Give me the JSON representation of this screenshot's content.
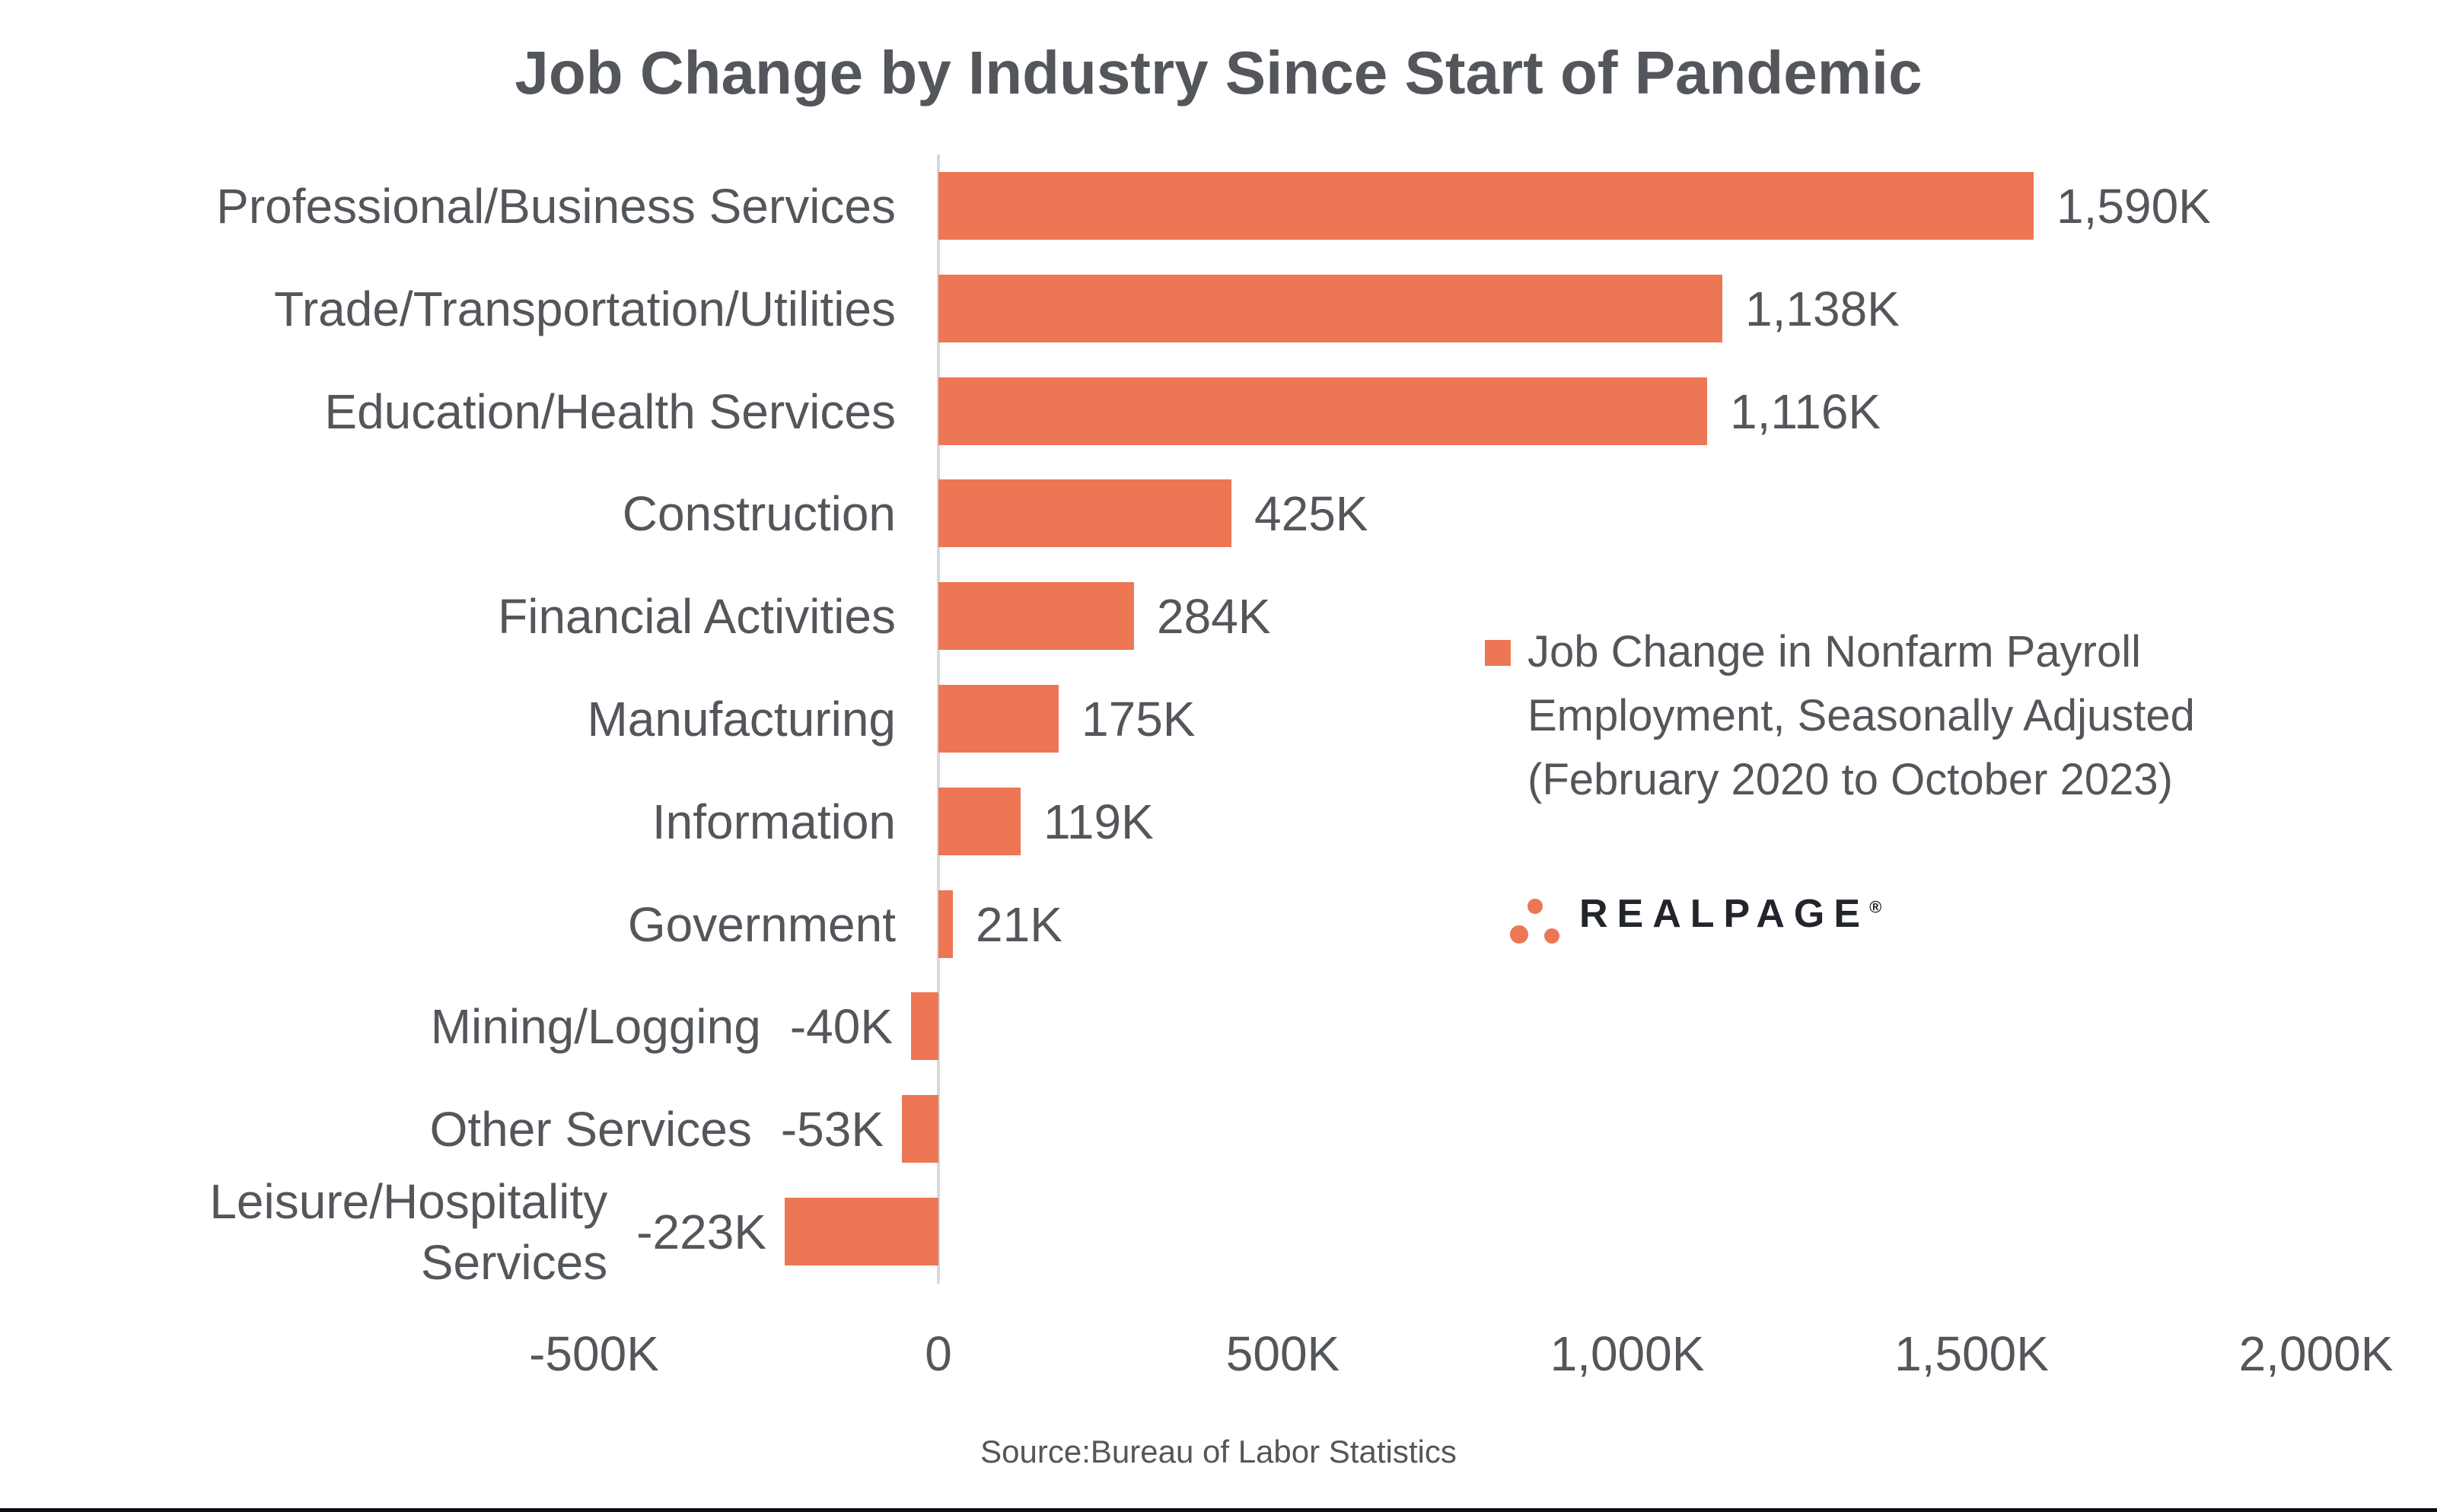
{
  "page": {
    "source": "Source:Bureau of Labor Statistics"
  },
  "legend": {
    "label": "Job Change in Nonfarm Payroll Employment, Seasonally Adjusted (February 2020 to October 2023)"
  },
  "logo": {
    "name": "REALPAGE",
    "registered": "®"
  },
  "colors": {
    "bar": "#ED7655",
    "text": "#53565A",
    "axis_line": "#D8D8D8",
    "logo_text": "#22252B",
    "bottom_rule": "#0E0E12"
  },
  "chart_data": {
    "type": "bar",
    "orientation": "horizontal",
    "title": "Job Change by Industry Since Start of Pandemic",
    "categories": [
      "Professional/Business Services",
      "Trade/Transportation/Utilities",
      "Education/Health Services",
      "Construction",
      "Financial Activities",
      "Manufacturing",
      "Information",
      "Government",
      "Mining/Logging",
      "Other Services",
      "Leisure/Hospitality\nServices"
    ],
    "values": [
      1590,
      1138,
      1116,
      425,
      284,
      175,
      119,
      21,
      -40,
      -53,
      -223
    ],
    "value_labels": [
      "1,590K",
      "1,138K",
      "1,116K",
      "425K",
      "284K",
      "175K",
      "119K",
      "21K",
      "-40K",
      "-53K",
      "-223K"
    ],
    "unit": "K jobs (thousands)",
    "xlabel": "",
    "ylabel": "",
    "xlim": [
      -500,
      2000
    ],
    "x_ticks": [
      {
        "value": -500,
        "label": "-500K"
      },
      {
        "value": 0,
        "label": "0"
      },
      {
        "value": 500,
        "label": "500K"
      },
      {
        "value": 1000,
        "label": "1,000K"
      },
      {
        "value": 1500,
        "label": "1,500K"
      },
      {
        "value": 2000,
        "label": "2,000K"
      }
    ],
    "grid": false,
    "legend_position": "center-right",
    "series": [
      {
        "name": "Job Change in Nonfarm Payroll Employment, Seasonally Adjusted (February 2020 to October 2023)",
        "color": "#ED7655"
      }
    ]
  }
}
